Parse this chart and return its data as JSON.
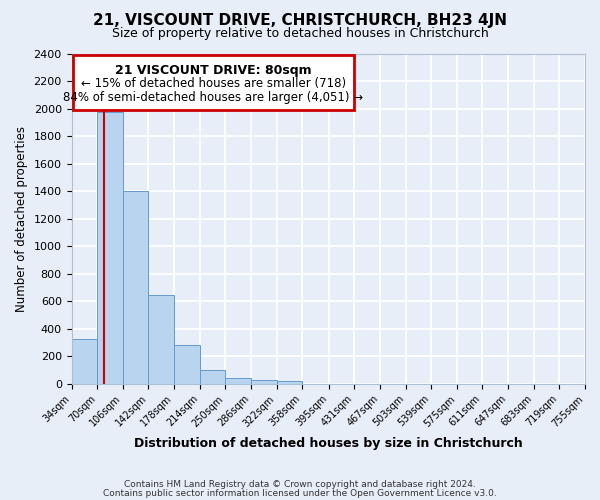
{
  "title": "21, VISCOUNT DRIVE, CHRISTCHURCH, BH23 4JN",
  "subtitle": "Size of property relative to detached houses in Christchurch",
  "xlabel": "Distribution of detached houses by size in Christchurch",
  "ylabel": "Number of detached properties",
  "bar_color": "#b8d4ee",
  "bar_edge_color": "#6699cc",
  "background_color": "#e8eef8",
  "grid_color": "#ffffff",
  "red_line_x": 80,
  "annotation_title": "21 VISCOUNT DRIVE: 80sqm",
  "annotation_line1": "← 15% of detached houses are smaller (718)",
  "annotation_line2": "84% of semi-detached houses are larger (4,051) →",
  "annotation_box_color": "#ffffff",
  "annotation_box_edge": "#cc0000",
  "red_line_color": "#cc0000",
  "bins": [
    34,
    70,
    106,
    142,
    178,
    214,
    250,
    286,
    322,
    358,
    395,
    431,
    467,
    503,
    539,
    575,
    611,
    647,
    683,
    719,
    755
  ],
  "bin_labels": [
    "34sqm",
    "70sqm",
    "106sqm",
    "142sqm",
    "178sqm",
    "214sqm",
    "250sqm",
    "286sqm",
    "322sqm",
    "358sqm",
    "395sqm",
    "431sqm",
    "467sqm",
    "503sqm",
    "539sqm",
    "575sqm",
    "611sqm",
    "647sqm",
    "683sqm",
    "719sqm",
    "755sqm"
  ],
  "bar_heights": [
    325,
    1975,
    1400,
    650,
    280,
    105,
    45,
    30,
    20,
    0,
    0,
    0,
    0,
    0,
    0,
    0,
    0,
    0,
    0,
    0
  ],
  "ylim": [
    0,
    2400
  ],
  "yticks": [
    0,
    200,
    400,
    600,
    800,
    1000,
    1200,
    1400,
    1600,
    1800,
    2000,
    2200,
    2400
  ],
  "footer_line1": "Contains HM Land Registry data © Crown copyright and database right 2024.",
  "footer_line2": "Contains public sector information licensed under the Open Government Licence v3.0."
}
